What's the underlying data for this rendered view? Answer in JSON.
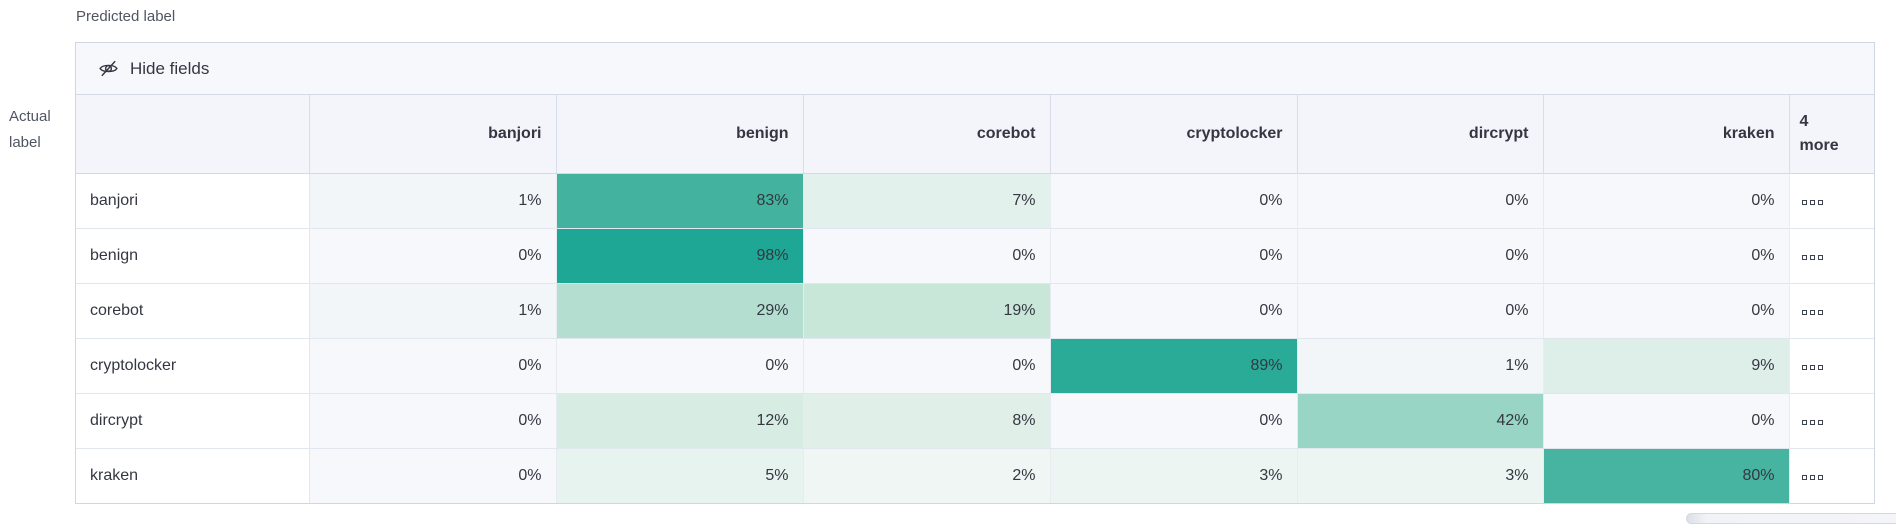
{
  "axis_labels": {
    "predicted": "Predicted label",
    "actual_line1": "Actual",
    "actual_line2": "label"
  },
  "toolbar": {
    "hide_fields_label": "Hide fields",
    "icon": "eye-closed-icon"
  },
  "grid": {
    "columns": [
      "banjori",
      "benign",
      "corebot",
      "cryptolocker",
      "dircrypt",
      "kraken"
    ],
    "more_header": {
      "count": "4",
      "word": "more"
    },
    "more_cell_icon": "boxes-horizontal-icon",
    "rows": [
      {
        "label": "banjori",
        "cells": [
          {
            "v": "1%",
            "c": "#f3f6f8"
          },
          {
            "v": "83%",
            "c": "#43b3a0"
          },
          {
            "v": "7%",
            "c": "#e2f1eb"
          },
          {
            "v": "0%",
            "c": "#f6f8fb"
          },
          {
            "v": "0%",
            "c": "#f6f8fb"
          },
          {
            "v": "0%",
            "c": "#f6f8fb"
          }
        ]
      },
      {
        "label": "benign",
        "cells": [
          {
            "v": "0%",
            "c": "#f6f8fb"
          },
          {
            "v": "98%",
            "c": "#1ea795"
          },
          {
            "v": "0%",
            "c": "#f6f8fb"
          },
          {
            "v": "0%",
            "c": "#f6f8fb"
          },
          {
            "v": "0%",
            "c": "#f6f8fb"
          },
          {
            "v": "0%",
            "c": "#f6f8fb"
          }
        ]
      },
      {
        "label": "corebot",
        "cells": [
          {
            "v": "1%",
            "c": "#f3f6f8"
          },
          {
            "v": "29%",
            "c": "#b4dfd0"
          },
          {
            "v": "19%",
            "c": "#c9e7d9"
          },
          {
            "v": "0%",
            "c": "#f6f8fb"
          },
          {
            "v": "0%",
            "c": "#f6f8fb"
          },
          {
            "v": "0%",
            "c": "#f6f8fb"
          }
        ]
      },
      {
        "label": "cryptolocker",
        "cells": [
          {
            "v": "0%",
            "c": "#f6f8fb"
          },
          {
            "v": "0%",
            "c": "#f6f8fb"
          },
          {
            "v": "0%",
            "c": "#f6f8fb"
          },
          {
            "v": "89%",
            "c": "#2aab97"
          },
          {
            "v": "1%",
            "c": "#f3f6f8"
          },
          {
            "v": "9%",
            "c": "#ddefe8"
          }
        ]
      },
      {
        "label": "dircrypt",
        "cells": [
          {
            "v": "0%",
            "c": "#f6f8fb"
          },
          {
            "v": "12%",
            "c": "#d7ece3"
          },
          {
            "v": "8%",
            "c": "#e0f0e9"
          },
          {
            "v": "0%",
            "c": "#f6f8fb"
          },
          {
            "v": "42%",
            "c": "#98d5c4"
          },
          {
            "v": "0%",
            "c": "#f6f8fb"
          }
        ]
      },
      {
        "label": "kraken",
        "cells": [
          {
            "v": "0%",
            "c": "#f6f8fb"
          },
          {
            "v": "5%",
            "c": "#e7f3ee"
          },
          {
            "v": "2%",
            "c": "#eff6f3"
          },
          {
            "v": "3%",
            "c": "#ecf5f1"
          },
          {
            "v": "3%",
            "c": "#ecf5f1"
          },
          {
            "v": "80%",
            "c": "#47b4a2"
          }
        ]
      }
    ]
  },
  "colors": {
    "accent_teal": "#1ea795",
    "zero_cell": "#f6f8fb",
    "header_bg": "#f3f5fa",
    "toolbar_bg": "#f7f8fc",
    "outer_border": "#cfd7e2",
    "text": "#343741",
    "muted_text": "#4f5561"
  },
  "chart_data": {
    "type": "heatmap",
    "title": "",
    "xlabel": "Predicted label",
    "ylabel": "Actual label",
    "x_categories": [
      "banjori",
      "benign",
      "corebot",
      "cryptolocker",
      "dircrypt",
      "kraken"
    ],
    "y_categories": [
      "banjori",
      "benign",
      "corebot",
      "cryptolocker",
      "dircrypt",
      "kraken"
    ],
    "values_percent": [
      [
        1,
        83,
        7,
        0,
        0,
        0
      ],
      [
        0,
        98,
        0,
        0,
        0,
        0
      ],
      [
        1,
        29,
        19,
        0,
        0,
        0
      ],
      [
        0,
        0,
        0,
        89,
        1,
        9
      ],
      [
        0,
        12,
        8,
        0,
        42,
        0
      ],
      [
        0,
        5,
        2,
        3,
        3,
        80
      ]
    ],
    "hidden_columns_note": "4 more",
    "legend": "off",
    "color_scale": [
      "#f6f8fb",
      "#1ea795"
    ]
  }
}
